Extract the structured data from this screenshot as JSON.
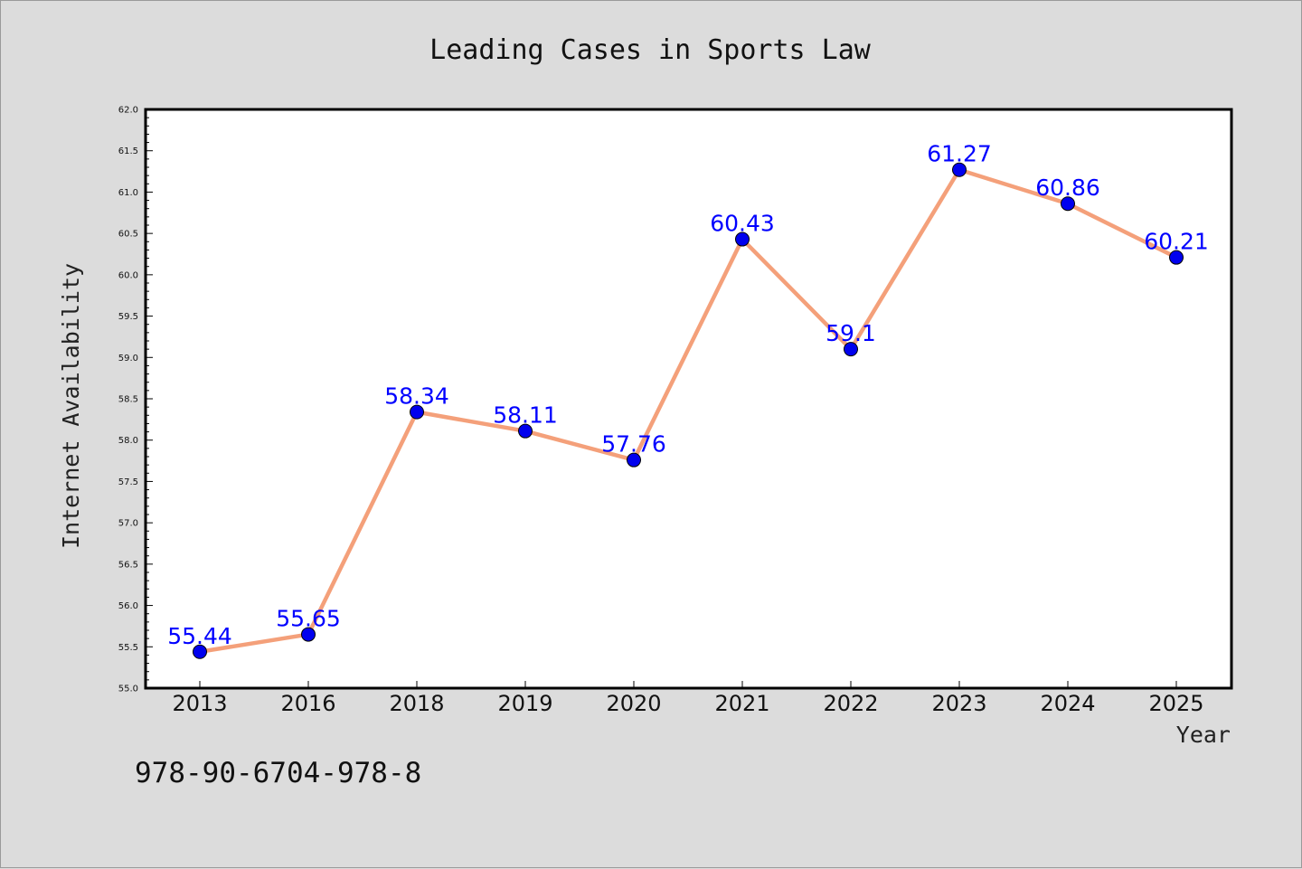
{
  "footer": {
    "isbn": "978-90-6704-978-8"
  },
  "chart_data": {
    "type": "line",
    "title": "Leading Cases in Sports Law",
    "xlabel": "Year",
    "ylabel": "Internet Availability",
    "categories": [
      "2013",
      "2016",
      "2018",
      "2019",
      "2020",
      "2021",
      "2022",
      "2023",
      "2024",
      "2025"
    ],
    "series": [
      {
        "values": [
          55.44,
          55.65,
          58.34,
          58.11,
          57.76,
          60.43,
          59.1,
          61.27,
          60.86,
          60.21
        ],
        "labels": [
          "55.44",
          "55.65",
          "58.34",
          "58.11",
          "57.76",
          "60.43",
          "59.1",
          "61.27",
          "60.86",
          "60.21"
        ],
        "line_color": "#f4a07a",
        "marker_color": "#0000ee",
        "label_color": "#0000ff"
      }
    ],
    "ylim": [
      55.0,
      62.0
    ],
    "yticks": [
      "55.0",
      "55.5",
      "56.0",
      "56.5",
      "57.0",
      "57.5",
      "58.0",
      "58.5",
      "59.0",
      "59.5",
      "60.0",
      "60.5",
      "61.0",
      "61.5",
      "62.0"
    ],
    "grid": false,
    "legend": "none"
  }
}
